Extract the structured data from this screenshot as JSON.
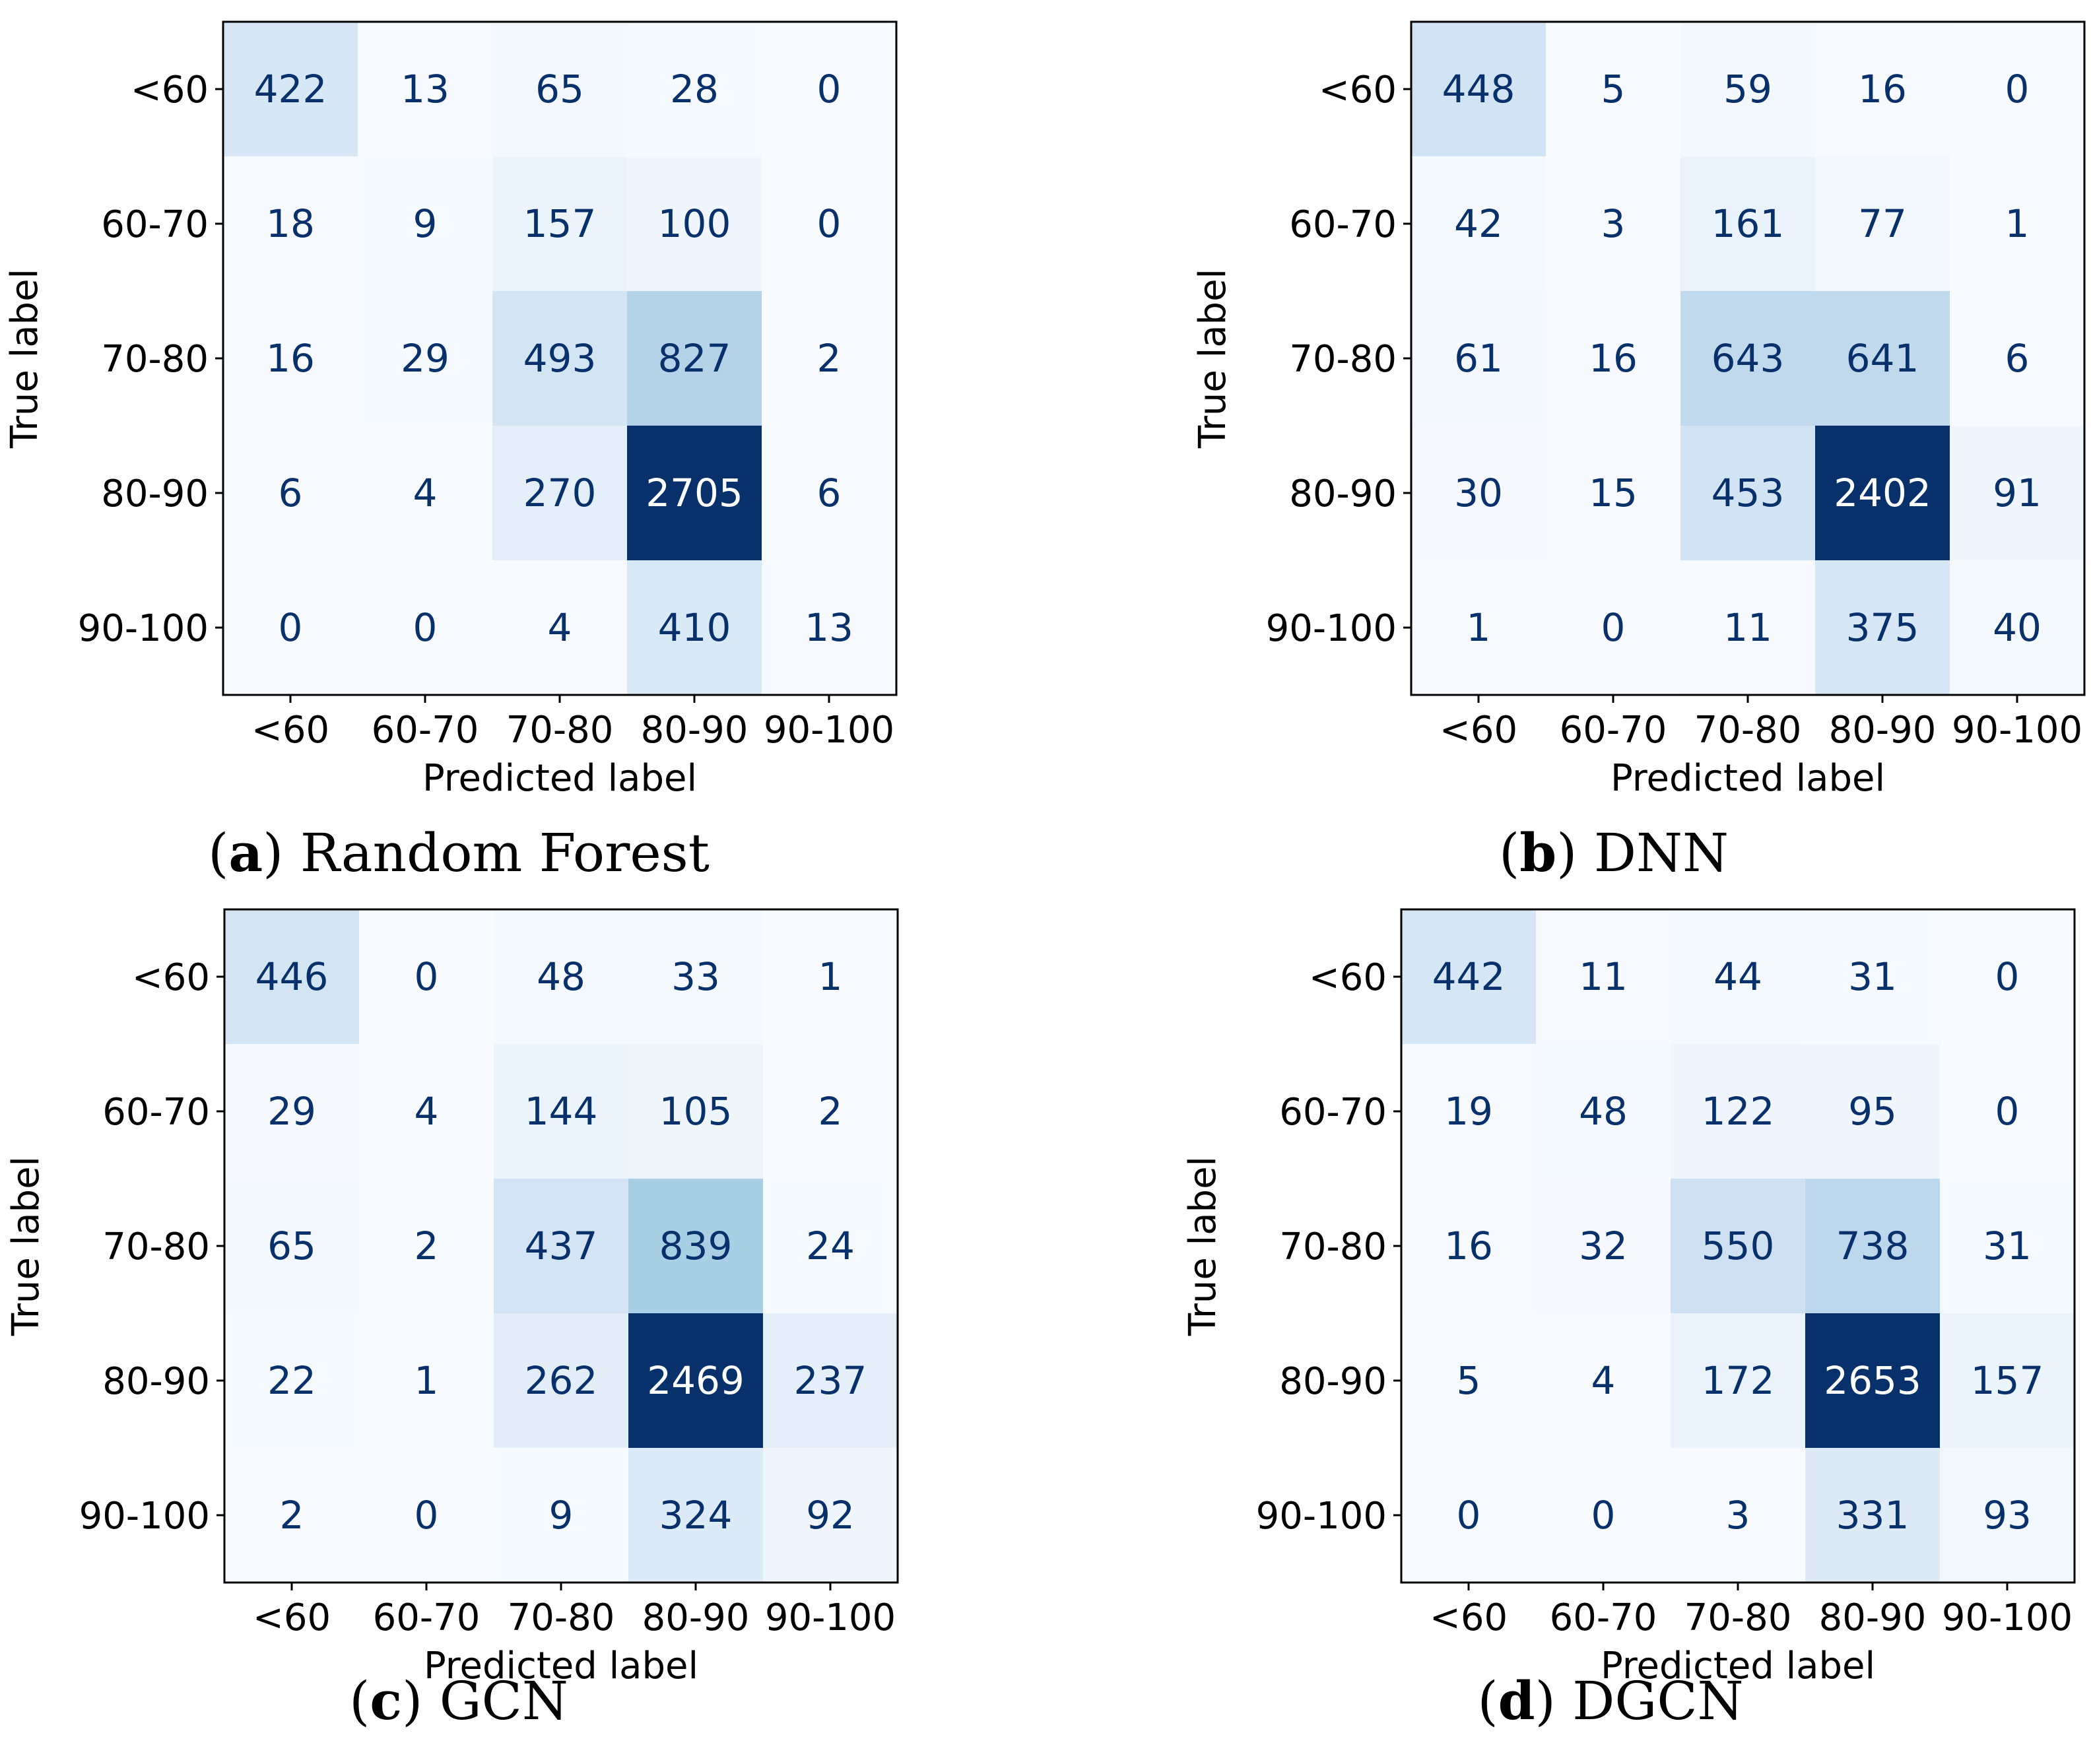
{
  "chart_data": [
    {
      "type": "heatmap",
      "caption_prefix": "(",
      "caption_letter": "a",
      "caption_suffix": ")",
      "caption_title": "Random Forest",
      "xlabel": "Predicted label",
      "ylabel": "True label",
      "x_categories": [
        "<60",
        "60-70",
        "70-80",
        "80-90",
        "90-100"
      ],
      "y_categories": [
        "<60",
        "60-70",
        "70-80",
        "80-90",
        "90-100"
      ],
      "colormap": "Blues",
      "values": [
        [
          422,
          13,
          65,
          28,
          0
        ],
        [
          18,
          9,
          157,
          100,
          0
        ],
        [
          16,
          29,
          493,
          827,
          2
        ],
        [
          6,
          4,
          270,
          2705,
          6
        ],
        [
          0,
          0,
          4,
          410,
          13
        ]
      ]
    },
    {
      "type": "heatmap",
      "caption_prefix": "(",
      "caption_letter": "b",
      "caption_suffix": ")",
      "caption_title": "DNN",
      "xlabel": "Predicted label",
      "ylabel": "True label",
      "x_categories": [
        "<60",
        "60-70",
        "70-80",
        "80-90",
        "90-100"
      ],
      "y_categories": [
        "<60",
        "60-70",
        "70-80",
        "80-90",
        "90-100"
      ],
      "colormap": "Blues",
      "values": [
        [
          448,
          5,
          59,
          16,
          0
        ],
        [
          42,
          3,
          161,
          77,
          1
        ],
        [
          61,
          16,
          643,
          641,
          6
        ],
        [
          30,
          15,
          453,
          2402,
          91
        ],
        [
          1,
          0,
          11,
          375,
          40
        ]
      ]
    },
    {
      "type": "heatmap",
      "caption_prefix": "(",
      "caption_letter": "c",
      "caption_suffix": ")",
      "caption_title": "GCN",
      "xlabel": "Predicted label",
      "ylabel": "True label",
      "x_categories": [
        "<60",
        "60-70",
        "70-80",
        "80-90",
        "90-100"
      ],
      "y_categories": [
        "<60",
        "60-70",
        "70-80",
        "80-90",
        "90-100"
      ],
      "colormap": "Blues",
      "values": [
        [
          446,
          0,
          48,
          33,
          1
        ],
        [
          29,
          4,
          144,
          105,
          2
        ],
        [
          65,
          2,
          437,
          839,
          24
        ],
        [
          22,
          1,
          262,
          2469,
          237
        ],
        [
          2,
          0,
          9,
          324,
          92
        ]
      ]
    },
    {
      "type": "heatmap",
      "caption_prefix": "(",
      "caption_letter": "d",
      "caption_suffix": ")",
      "caption_title": "DGCN",
      "xlabel": "Predicted label",
      "ylabel": "True label",
      "x_categories": [
        "<60",
        "60-70",
        "70-80",
        "80-90",
        "90-100"
      ],
      "y_categories": [
        "<60",
        "60-70",
        "70-80",
        "80-90",
        "90-100"
      ],
      "colormap": "Blues",
      "values": [
        [
          442,
          11,
          44,
          31,
          0
        ],
        [
          19,
          48,
          122,
          95,
          0
        ],
        [
          16,
          32,
          550,
          738,
          31
        ],
        [
          5,
          4,
          172,
          2653,
          157
        ],
        [
          0,
          0,
          3,
          331,
          93
        ]
      ]
    }
  ]
}
